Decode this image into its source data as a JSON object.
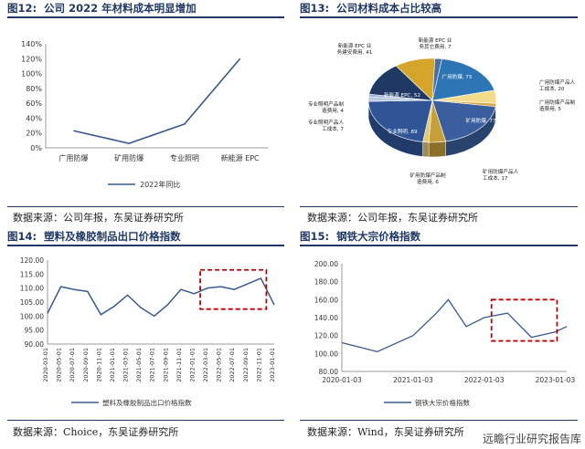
{
  "fig12": {
    "fig_label": "图12:",
    "title": "公司 2022 年材料成本明显增加",
    "source": "数据来源：公司年报，东吴证券研究所"
  },
  "fig13": {
    "fig_label": "图13:",
    "title": "公司材料成本占比较高",
    "source": "数据来源：公司年报，东吴证券研究所"
  },
  "fig14": {
    "fig_label": "图14:",
    "title": "塑料及橡胶制品出口价格指数",
    "source": "数据来源：Choice，东吴证券研究所"
  },
  "fig15": {
    "fig_label": "图15:",
    "title": "钢铁大宗价格指数",
    "source": "数据来源：Wind，东吴证券研究所"
  },
  "watermark": "远瞻行业研究报告库",
  "chart_data": [
    {
      "type": "line",
      "categories": [
        "广用防爆",
        "矿用防爆",
        "专业照明",
        "新能源 EPC"
      ],
      "series": [
        {
          "name": "2022年同比",
          "values": [
            0.23,
            0.06,
            0.32,
            1.2
          ],
          "color": "#3a5a8c"
        }
      ],
      "ylim": [
        0,
        1.4
      ],
      "yticks": [
        "0%",
        "20%",
        "40%",
        "60%",
        "80%",
        "100%",
        "120%",
        "140%"
      ],
      "grid": false,
      "legend": "bottom"
    },
    {
      "type": "pie",
      "labels": [
        "广用防爆, 75",
        "广用防爆产品人工成本, 20",
        "广用防爆产品制造费用, 5",
        "矿用防爆, 77",
        "矿用防爆产品人工成本, 17",
        "矿用防爆产品制造费用, 6",
        "专业照明, 89",
        "专业照明产品人工成本, 7",
        "专业照明产品制造费用, 4",
        "新能源 EPC, 52",
        "新能源 EPC 业务建安费用, 41",
        "新能源 EPC 业务其它费用, 7"
      ],
      "values": [
        75,
        20,
        5,
        77,
        17,
        6,
        89,
        7,
        4,
        52,
        41,
        7
      ],
      "colors": [
        "#2e75b6",
        "#f2dc8c",
        "#d9a441",
        "#3b5f9e",
        "#c5a03a",
        "#e6c872",
        "#2f5597",
        "#b7c8e0",
        "#9fb4d4",
        "#1f3864",
        "#d4a52a",
        "#4a6fa5"
      ],
      "style": "3d-pie"
    },
    {
      "type": "line",
      "x": [
        "2020-03-01",
        "2020-05-01",
        "2020-07-01",
        "2020-09-01",
        "2020-11-01",
        "2021-01-01",
        "2021-03-01",
        "2021-05-01",
        "2021-07-01",
        "2021-09-01",
        "2021-11-01",
        "2022-01-01",
        "2022-03-01",
        "2022-05-01",
        "2022-07-01",
        "2022-09-01",
        "2022-11-01",
        "2023-01-01"
      ],
      "series": [
        {
          "name": "塑料及橡胶制品出口价格指数",
          "values": [
            101.0,
            110.5,
            109.5,
            108.8,
            100.5,
            103.5,
            107.5,
            103.0,
            100.0,
            104.0,
            109.5,
            108.0,
            110.0,
            110.5,
            109.5,
            111.5,
            113.5,
            104.0
          ],
          "color": "#3a5a8c"
        }
      ],
      "ylim": [
        90,
        120
      ],
      "yticks": [
        "90.00",
        "95.00",
        "100.00",
        "105.00",
        "110.00",
        "115.00",
        "120.00"
      ],
      "highlight": {
        "x_from": "2022-03-01",
        "x_to": "2022-11-01",
        "style": "red-dashed-box"
      },
      "legend": "bottom"
    },
    {
      "type": "line",
      "x": [
        "2020-01-03",
        "2020-07-03",
        "2021-01-03",
        "2021-05-03",
        "2021-07-03",
        "2021-10-03",
        "2022-01-03",
        "2022-05-03",
        "2022-09-03",
        "2023-01-03",
        "2023-03-03"
      ],
      "series": [
        {
          "name": "钢铁大宗价格指数",
          "values": [
            112,
            102,
            120,
            145,
            160,
            130,
            140,
            145,
            118,
            124,
            130
          ],
          "color": "#3a5a8c"
        }
      ],
      "ylim": [
        80,
        200
      ],
      "yticks": [
        "80.00",
        "100.00",
        "120.00",
        "140.00",
        "160.00",
        "180.00",
        "200.00"
      ],
      "xticks": [
        "2020-01-03",
        "2021-01-03",
        "2022-01-03",
        "2023-01-03"
      ],
      "highlight": {
        "x_from": "2022-01-03",
        "x_to": "2023-01-03",
        "style": "red-dashed-box"
      },
      "legend": "bottom"
    }
  ]
}
